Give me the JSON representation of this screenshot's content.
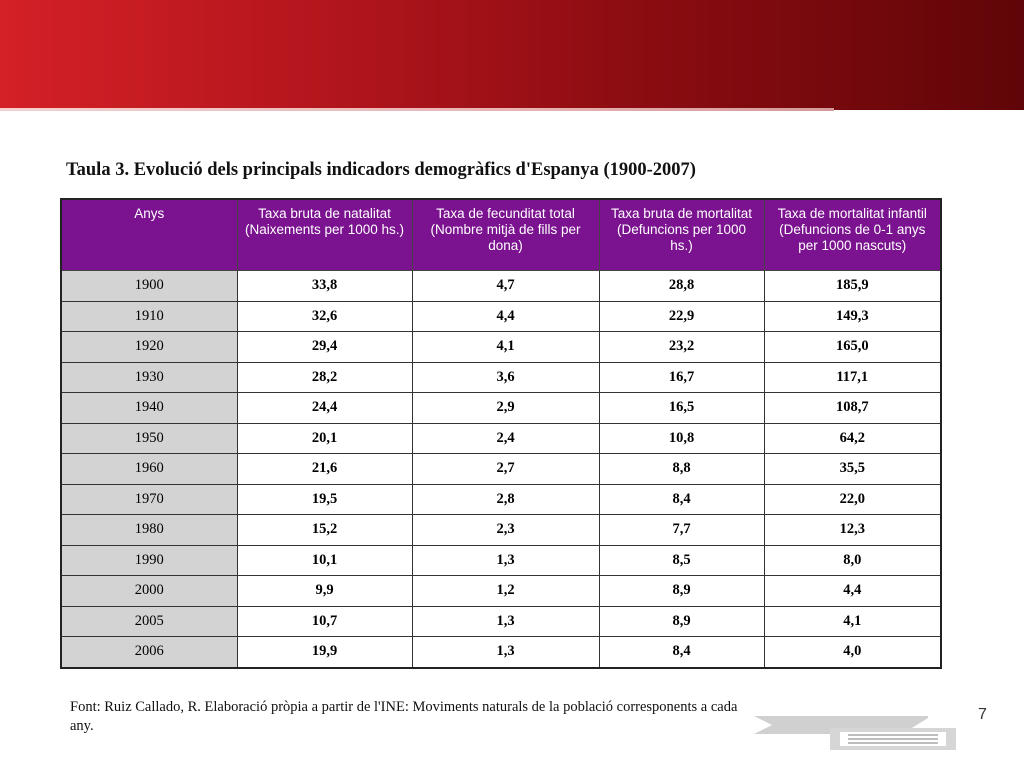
{
  "title": {
    "prefix": "Taula 3",
    "text": ". Evolució dels principals indicadors demogràfics d'Espanya (1900-2007)"
  },
  "table": {
    "headers": [
      "Anys",
      "Taxa bruta de natalitat (Naixements per 1000 hs.)",
      "Taxa de fecunditat total (Nombre mitjà de fills per dona)",
      "Taxa bruta de mortalitat (Defuncions per 1000 hs.)",
      "Taxa de mortalitat infantil (Defuncions de 0-1 anys per 1000 nascuts)"
    ],
    "rows": [
      [
        "1900",
        "33,8",
        "4,7",
        "28,8",
        "185,9"
      ],
      [
        "1910",
        "32,6",
        "4,4",
        "22,9",
        "149,3"
      ],
      [
        "1920",
        "29,4",
        "4,1",
        "23,2",
        "165,0"
      ],
      [
        "1930",
        "28,2",
        "3,6",
        "16,7",
        "117,1"
      ],
      [
        "1940",
        "24,4",
        "2,9",
        "16,5",
        "108,7"
      ],
      [
        "1950",
        "20,1",
        "2,4",
        "10,8",
        "64,2"
      ],
      [
        "1960",
        "21,6",
        "2,7",
        "8,8",
        "35,5"
      ],
      [
        "1970",
        "19,5",
        "2,8",
        "8,4",
        "22,0"
      ],
      [
        "1980",
        "15,2",
        "2,3",
        "7,7",
        "12,3"
      ],
      [
        "1990",
        "10,1",
        "1,3",
        "8,5",
        "8,0"
      ],
      [
        "2000",
        "9,9",
        "1,2",
        "8,9",
        "4,4"
      ],
      [
        "2005",
        "10,7",
        "1,3",
        "8,9",
        "4,1"
      ],
      [
        "2006",
        "19,9",
        "1,3",
        "8,4",
        "4,0"
      ]
    ]
  },
  "footer": {
    "source": "Font: Ruiz Callado, R. Elaboració pròpia a partir de l'INE: Moviments naturals de la població corresponents a cada any."
  },
  "page_number": "7",
  "colors": {
    "banner_red": "#d42027",
    "banner_dark": "#600508",
    "header_purple": "#7b128f",
    "year_gray": "#d3d3d3"
  },
  "icons": {
    "corner_logo": "stacked-lines-logo-icon"
  }
}
